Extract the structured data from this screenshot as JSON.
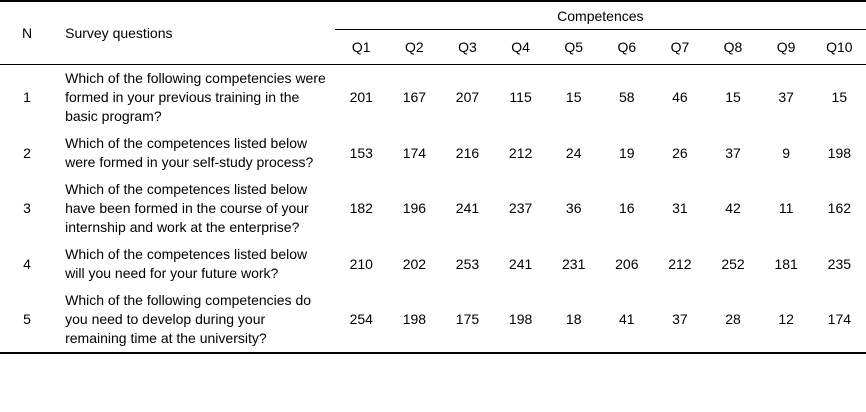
{
  "table": {
    "headers": {
      "n": "N",
      "questions": "Survey questions",
      "competences": "Competences",
      "q_columns": [
        "Q1",
        "Q2",
        "Q3",
        "Q4",
        "Q5",
        "Q6",
        "Q7",
        "Q8",
        "Q9",
        "Q10"
      ]
    },
    "rows": [
      {
        "n": "1",
        "question": "Which of the following competencies were formed in your previous training in the basic program?",
        "values": [
          "201",
          "167",
          "207",
          "115",
          "15",
          "58",
          "46",
          "15",
          "37",
          "15"
        ]
      },
      {
        "n": "2",
        "question": "Which of the competences listed below were formed in your self-study process?",
        "values": [
          "153",
          "174",
          "216",
          "212",
          "24",
          "19",
          "26",
          "37",
          "9",
          "198"
        ]
      },
      {
        "n": "3",
        "question": "Which of the competences listed below have been formed in the course of your internship and work at the enterprise?",
        "values": [
          "182",
          "196",
          "241",
          "237",
          "36",
          "16",
          "31",
          "42",
          "11",
          "162"
        ]
      },
      {
        "n": "4",
        "question": "Which of the competences listed below will you need for your future work?",
        "values": [
          "210",
          "202",
          "253",
          "241",
          "231",
          "206",
          "212",
          "252",
          "181",
          "235"
        ]
      },
      {
        "n": "5",
        "question": "Which of the following competencies do you need to develop during your remaining time at the university?",
        "values": [
          "254",
          "198",
          "175",
          "198",
          "18",
          "41",
          "37",
          "28",
          "12",
          "174"
        ]
      }
    ]
  },
  "colors": {
    "text": "#000000",
    "border": "#000000",
    "background": "#ffffff"
  }
}
